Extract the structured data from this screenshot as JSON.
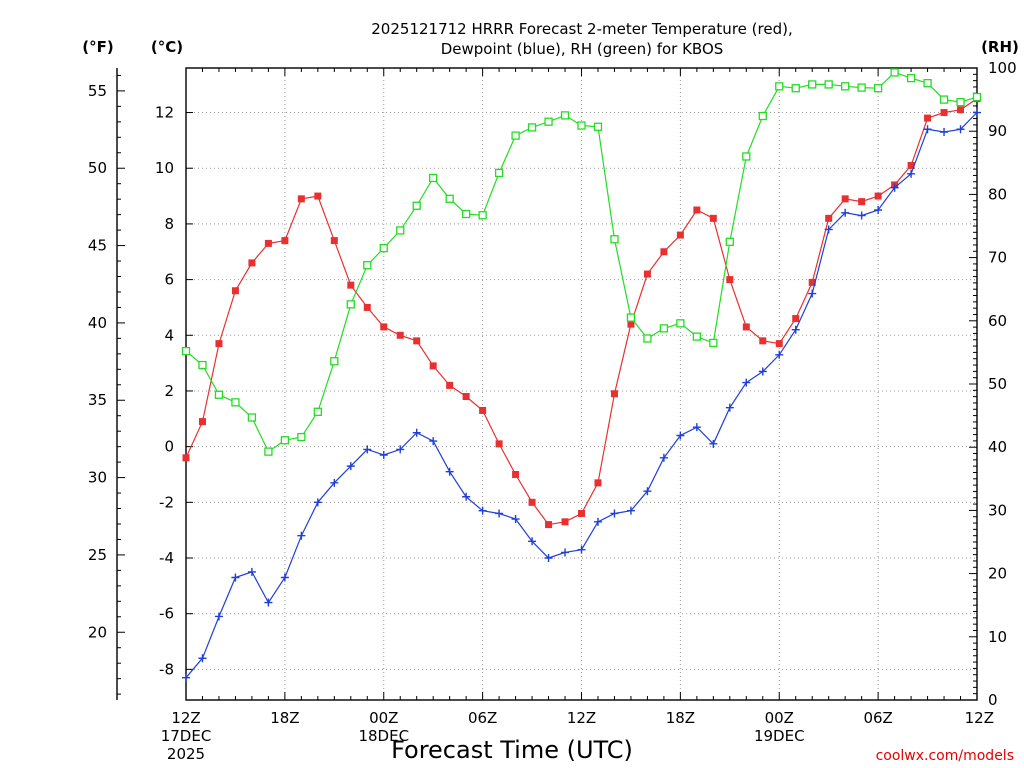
{
  "chart_data": {
    "type": "line",
    "title_lines": [
      "2025121712 HRRR Forecast 2-meter Temperature (red),",
      "Dewpoint (blue), RH (green) for KBOS"
    ],
    "xlabel": "Forecast Time (UTC)",
    "credit": "coolwx.com/models",
    "unit_labels": {
      "fahrenheit": "(°F)",
      "celsius": "(°C)",
      "rh": "(RH)"
    },
    "x_range_hours": [
      0,
      48
    ],
    "celsius_axis": {
      "range": [
        -9.1,
        13.6
      ],
      "ticks": [
        -8,
        -6,
        -4,
        -2,
        0,
        2,
        4,
        6,
        8,
        10,
        12
      ]
    },
    "fahrenheit_axis": {
      "ticks": [
        20,
        25,
        30,
        35,
        40,
        45,
        50,
        55
      ]
    },
    "rh_axis": {
      "range": [
        0,
        100
      ],
      "ticks": [
        0,
        10,
        20,
        30,
        40,
        50,
        60,
        70,
        80,
        90,
        100
      ]
    },
    "x_ticks": [
      {
        "hour": 0,
        "lines": [
          "12Z",
          "17DEC",
          "2025"
        ]
      },
      {
        "hour": 6,
        "lines": [
          "18Z"
        ]
      },
      {
        "hour": 12,
        "lines": [
          "00Z",
          "18DEC"
        ]
      },
      {
        "hour": 18,
        "lines": [
          "06Z"
        ]
      },
      {
        "hour": 24,
        "lines": [
          "12Z"
        ]
      },
      {
        "hour": 30,
        "lines": [
          "18Z"
        ]
      },
      {
        "hour": 36,
        "lines": [
          "00Z",
          "19DEC"
        ]
      },
      {
        "hour": 42,
        "lines": [
          "06Z"
        ]
      },
      {
        "hour": 48,
        "lines": [
          "12Z"
        ]
      }
    ],
    "x": [
      0,
      1,
      2,
      3,
      4,
      5,
      6,
      7,
      8,
      9,
      10,
      11,
      12,
      13,
      14,
      15,
      16,
      17,
      18,
      19,
      20,
      21,
      22,
      23,
      24,
      25,
      26,
      27,
      28,
      29,
      30,
      31,
      32,
      33,
      34,
      35,
      36,
      37,
      38,
      39,
      40,
      41,
      42,
      43,
      44,
      45,
      46,
      47,
      48
    ],
    "series": [
      {
        "name": "Temperature",
        "axis": "celsius",
        "color": "#e83030",
        "marker": "filled-square",
        "values": [
          -0.4,
          0.9,
          3.7,
          5.6,
          6.6,
          7.3,
          7.4,
          8.9,
          9.0,
          7.4,
          5.8,
          5.0,
          4.3,
          4.0,
          3.8,
          2.9,
          2.2,
          1.8,
          1.3,
          0.1,
          -1.0,
          -2.0,
          -2.8,
          -2.7,
          -2.4,
          -1.3,
          1.9,
          4.4,
          6.2,
          7.0,
          7.6,
          8.5,
          8.2,
          6.0,
          4.3,
          3.8,
          3.7,
          4.6,
          5.9,
          8.2,
          8.9,
          8.8,
          9.0,
          9.4,
          10.1,
          11.8,
          12.0,
          12.1,
          12.5
        ]
      },
      {
        "name": "Dewpoint",
        "axis": "celsius",
        "color": "#1f3fd8",
        "marker": "plus",
        "values": [
          -8.3,
          -7.6,
          -6.1,
          -4.7,
          -4.5,
          -5.6,
          -4.7,
          -3.2,
          -2.0,
          -1.3,
          -0.7,
          -0.1,
          -0.3,
          -0.1,
          0.5,
          0.2,
          -0.9,
          -1.8,
          -2.3,
          -2.4,
          -2.6,
          -3.4,
          -4.0,
          -3.8,
          -3.7,
          -2.7,
          -2.4,
          -2.3,
          -1.6,
          -0.4,
          0.4,
          0.7,
          0.1,
          1.4,
          2.3,
          2.7,
          3.3,
          4.2,
          5.5,
          7.8,
          8.4,
          8.3,
          8.5,
          9.3,
          9.8,
          11.4,
          11.3,
          11.4,
          12.0
        ]
      },
      {
        "name": "RH",
        "axis": "rh",
        "color": "#22dd22",
        "marker": "open-square",
        "values": [
          55.2,
          53.0,
          48.3,
          47.1,
          44.7,
          39.3,
          41.1,
          41.6,
          45.6,
          53.6,
          62.6,
          68.8,
          71.5,
          74.3,
          78.2,
          82.6,
          79.3,
          76.9,
          76.7,
          83.4,
          89.3,
          90.6,
          91.5,
          92.5,
          90.9,
          90.7,
          72.9,
          60.5,
          57.2,
          58.8,
          59.6,
          57.5,
          56.5,
          72.5,
          86.0,
          92.4,
          97.1,
          96.8,
          97.4,
          97.4,
          97.1,
          96.9,
          96.8,
          99.3,
          98.4,
          97.6,
          95.0,
          94.6,
          95.4
        ]
      }
    ]
  }
}
